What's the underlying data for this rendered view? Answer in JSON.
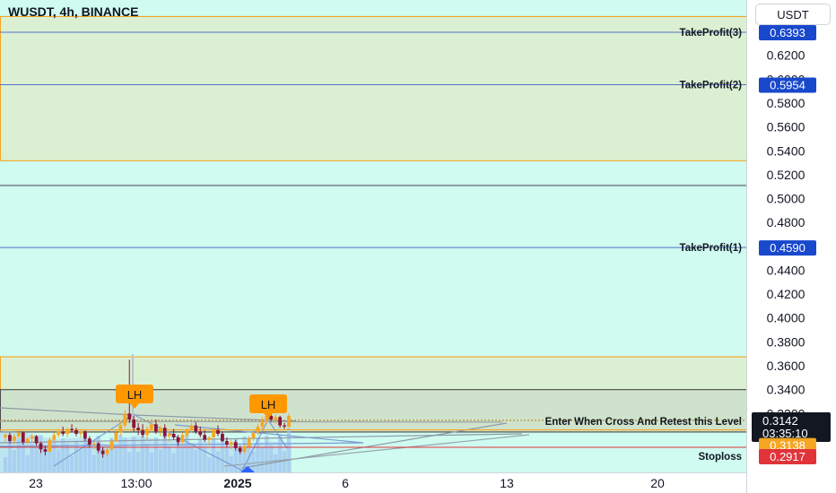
{
  "chart_data": {
    "type": "candlestick",
    "title": "WUSDT, 4h, BINANCE",
    "currency": "USDT",
    "ylim": [
      0.281,
      0.6525
    ],
    "y_ticks": [
      "0.6200",
      "0.6000",
      "0.5800",
      "0.5600",
      "0.5400",
      "0.5200",
      "0.5000",
      "0.4800",
      "0.4600",
      "0.4400",
      "0.4200",
      "0.4000",
      "0.3800",
      "0.3600",
      "0.3400",
      "0.3200"
    ],
    "x_ticks": [
      "23",
      "13:00",
      "2025",
      "6",
      "13",
      "20"
    ],
    "levels": [
      {
        "label": "TakeProfit(3)",
        "price": "0.6393",
        "value": 0.6393,
        "color": "#1848cc"
      },
      {
        "label": "TakeProfit(2)",
        "price": "0.5954",
        "value": 0.5954,
        "color": "#1848cc"
      },
      {
        "label": "TakeProfit(1)",
        "price": "0.4590",
        "value": 0.459,
        "color": "#1848cc"
      },
      {
        "label": "Enter When Cross And Retest this Level",
        "price": "0.3142",
        "value": 0.3142,
        "color": "#131722"
      },
      {
        "label": "",
        "price": "0.3138",
        "value": 0.3138,
        "color": "#f5a623"
      },
      {
        "label": "Stoploss",
        "price": "0.2917",
        "value": 0.2917,
        "color": "#e0343a"
      }
    ],
    "countdown": "03:35:10",
    "zones": [
      {
        "from": 0.5317,
        "to": 0.6525,
        "color": "#dbf0d3",
        "border": "#f5a623"
      },
      {
        "from": 0.3285,
        "to": 0.3675,
        "color": "#dbf0d3",
        "border": "#f5a623"
      },
      {
        "from": 0.3045,
        "to": 0.34,
        "color": "#cfe3cc",
        "border": "#4a4a4a"
      }
    ],
    "markers": [
      "LH",
      "LH"
    ],
    "candles": [
      [
        0.3,
        0.305,
        0.296,
        0.302
      ],
      [
        0.302,
        0.304,
        0.295,
        0.297
      ],
      [
        0.297,
        0.303,
        0.294,
        0.301
      ],
      [
        0.301,
        0.306,
        0.299,
        0.304
      ],
      [
        0.304,
        0.305,
        0.294,
        0.296
      ],
      [
        0.296,
        0.3,
        0.292,
        0.299
      ],
      [
        0.299,
        0.303,
        0.296,
        0.301
      ],
      [
        0.301,
        0.302,
        0.293,
        0.295
      ],
      [
        0.295,
        0.296,
        0.287,
        0.29
      ],
      [
        0.29,
        0.293,
        0.285,
        0.288
      ],
      [
        0.288,
        0.3,
        0.287,
        0.298
      ],
      [
        0.298,
        0.304,
        0.296,
        0.302
      ],
      [
        0.302,
        0.307,
        0.3,
        0.305
      ],
      [
        0.305,
        0.309,
        0.301,
        0.303
      ],
      [
        0.303,
        0.308,
        0.3,
        0.307
      ],
      [
        0.307,
        0.311,
        0.304,
        0.306
      ],
      [
        0.306,
        0.308,
        0.301,
        0.303
      ],
      [
        0.303,
        0.307,
        0.3,
        0.305
      ],
      [
        0.305,
        0.306,
        0.297,
        0.299
      ],
      [
        0.299,
        0.301,
        0.292,
        0.294
      ],
      [
        0.294,
        0.297,
        0.29,
        0.295
      ],
      [
        0.295,
        0.296,
        0.287,
        0.289
      ],
      [
        0.289,
        0.292,
        0.283,
        0.286
      ],
      [
        0.286,
        0.291,
        0.284,
        0.29
      ],
      [
        0.29,
        0.299,
        0.289,
        0.297
      ],
      [
        0.297,
        0.306,
        0.296,
        0.304
      ],
      [
        0.304,
        0.313,
        0.302,
        0.31
      ],
      [
        0.31,
        0.323,
        0.308,
        0.32
      ],
      [
        0.32,
        0.365,
        0.312,
        0.315
      ],
      [
        0.315,
        0.318,
        0.305,
        0.308
      ],
      [
        0.308,
        0.312,
        0.302,
        0.306
      ],
      [
        0.306,
        0.311,
        0.3,
        0.302
      ],
      [
        0.302,
        0.309,
        0.298,
        0.307
      ],
      [
        0.307,
        0.314,
        0.304,
        0.311
      ],
      [
        0.311,
        0.315,
        0.303,
        0.305
      ],
      [
        0.305,
        0.31,
        0.301,
        0.308
      ],
      [
        0.308,
        0.311,
        0.299,
        0.301
      ],
      [
        0.301,
        0.305,
        0.296,
        0.303
      ],
      [
        0.303,
        0.307,
        0.298,
        0.3
      ],
      [
        0.3,
        0.302,
        0.293,
        0.296
      ],
      [
        0.296,
        0.304,
        0.295,
        0.302
      ],
      [
        0.302,
        0.308,
        0.3,
        0.306
      ],
      [
        0.306,
        0.312,
        0.304,
        0.31
      ],
      [
        0.31,
        0.313,
        0.303,
        0.305
      ],
      [
        0.305,
        0.309,
        0.3,
        0.302
      ],
      [
        0.302,
        0.306,
        0.296,
        0.298
      ],
      [
        0.298,
        0.301,
        0.293,
        0.3
      ],
      [
        0.3,
        0.308,
        0.298,
        0.306
      ],
      [
        0.306,
        0.31,
        0.301,
        0.303
      ],
      [
        0.303,
        0.305,
        0.296,
        0.297
      ],
      [
        0.297,
        0.3,
        0.292,
        0.294
      ],
      [
        0.294,
        0.298,
        0.29,
        0.296
      ],
      [
        0.296,
        0.298,
        0.289,
        0.291
      ],
      [
        0.291,
        0.293,
        0.286,
        0.288
      ],
      [
        0.288,
        0.294,
        0.287,
        0.292
      ],
      [
        0.292,
        0.301,
        0.291,
        0.299
      ],
      [
        0.299,
        0.306,
        0.297,
        0.304
      ],
      [
        0.304,
        0.311,
        0.302,
        0.309
      ],
      [
        0.309,
        0.317,
        0.306,
        0.314
      ],
      [
        0.314,
        0.321,
        0.311,
        0.318
      ],
      [
        0.318,
        0.322,
        0.313,
        0.315
      ],
      [
        0.315,
        0.319,
        0.311,
        0.317
      ],
      [
        0.317,
        0.318,
        0.308,
        0.31
      ],
      [
        0.31,
        0.312,
        0.307,
        0.309
      ],
      [
        0.309,
        0.32,
        0.308,
        0.318
      ]
    ]
  }
}
